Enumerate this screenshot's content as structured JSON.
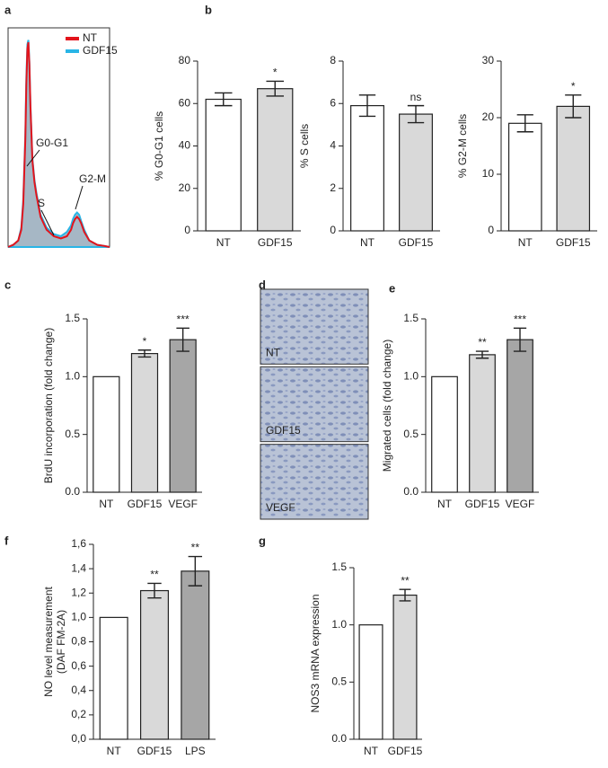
{
  "chart_data": [
    {
      "panel": "a",
      "type": "density",
      "xlim": [
        0,
        100
      ],
      "ylim": [
        0,
        100
      ],
      "x": [
        0,
        5,
        10,
        13,
        15,
        17,
        18,
        19,
        20,
        21,
        22,
        24,
        26,
        28,
        32,
        38,
        45,
        52,
        58,
        62,
        64,
        66,
        68,
        70,
        72,
        75,
        80,
        88,
        95,
        100
      ],
      "series": [
        {
          "name": "NT",
          "color": "#e3141c",
          "values": [
            0,
            1,
            3,
            8,
            20,
            50,
            75,
            92,
            95,
            85,
            65,
            40,
            30,
            24,
            14,
            8,
            5,
            4,
            5,
            8,
            11,
            13,
            14,
            13,
            11,
            7,
            3,
            1,
            0.5,
            0
          ]
        },
        {
          "name": "GDF15",
          "color": "#29b5e6",
          "fill": "#97aabb",
          "values": [
            0,
            1,
            3,
            9,
            22,
            52,
            78,
            94,
            96,
            86,
            66,
            41,
            31,
            25,
            15,
            9,
            6,
            5,
            7,
            10,
            13,
            15,
            16,
            15,
            12,
            8,
            3,
            1,
            0.5,
            0
          ]
        }
      ],
      "annotations": [
        "G0-G1",
        "S",
        "G2-M"
      ]
    },
    {
      "panel": "b",
      "type": "bar",
      "ylabel": [
        "% G0-G1 cells"
      ],
      "categories": [
        "NT",
        "GDF15"
      ],
      "values": [
        62,
        67
      ],
      "errors": [
        3,
        3.5
      ],
      "colors": [
        "#ffffff",
        "#d9d9d9"
      ],
      "significance": [
        null,
        "*"
      ],
      "ylim": [
        0,
        80
      ],
      "yticks": [
        0,
        20,
        40,
        60,
        80
      ]
    },
    {
      "panel": null,
      "type": "bar",
      "ylabel": [
        "% S cells"
      ],
      "categories": [
        "NT",
        "GDF15"
      ],
      "values": [
        5.9,
        5.5
      ],
      "errors": [
        0.5,
        0.4
      ],
      "colors": [
        "#ffffff",
        "#d9d9d9"
      ],
      "significance": [
        null,
        "ns"
      ],
      "ylim": [
        0,
        8
      ],
      "yticks": [
        0,
        2,
        4,
        6,
        8
      ]
    },
    {
      "panel": null,
      "type": "bar",
      "ylabel": [
        "% G2-M cells"
      ],
      "categories": [
        "NT",
        "GDF15"
      ],
      "values": [
        19,
        22
      ],
      "errors": [
        1.5,
        2
      ],
      "colors": [
        "#ffffff",
        "#d9d9d9"
      ],
      "significance": [
        null,
        "*"
      ],
      "ylim": [
        0,
        30
      ],
      "yticks": [
        0,
        10,
        20,
        30
      ]
    },
    {
      "panel": "c",
      "type": "bar",
      "ylabel": [
        "BrdU incorporation (fold change)"
      ],
      "categories": [
        "NT",
        "GDF15",
        "VEGF"
      ],
      "values": [
        1.0,
        1.2,
        1.32
      ],
      "errors": [
        null,
        0.03,
        0.1
      ],
      "colors": [
        "#ffffff",
        "#d9d9d9",
        "#a6a6a6"
      ],
      "significance": [
        null,
        "*",
        "***"
      ],
      "ylim": [
        0,
        1.5
      ],
      "yticks": [
        {
          "value": 0,
          "label": "0.0"
        },
        0.5,
        {
          "value": 1,
          "label": "1.0"
        },
        1.5
      ]
    },
    {
      "panel": "d",
      "type": "image",
      "images": [
        "NT",
        "GDF15",
        "VEGF"
      ]
    },
    {
      "panel": "e",
      "type": "bar",
      "ylabel": [
        "Migrated cells (fold change)"
      ],
      "categories": [
        "NT",
        "GDF15",
        "VEGF"
      ],
      "values": [
        1.0,
        1.19,
        1.32
      ],
      "errors": [
        null,
        0.03,
        0.1
      ],
      "colors": [
        "#ffffff",
        "#d9d9d9",
        "#a6a6a6"
      ],
      "significance": [
        null,
        "**",
        "***"
      ],
      "ylim": [
        0,
        1.5
      ],
      "yticks": [
        {
          "value": 0,
          "label": "0.0"
        },
        0.5,
        {
          "value": 1,
          "label": "1.0"
        },
        1.5
      ]
    },
    {
      "panel": "f",
      "type": "bar",
      "ylabel": [
        "NO level measurement",
        "(DAF FM-2A)"
      ],
      "categories": [
        "NT",
        "GDF15",
        "LPS"
      ],
      "values": [
        1.0,
        1.22,
        1.38
      ],
      "errors": [
        null,
        0.06,
        0.12
      ],
      "colors": [
        "#ffffff",
        "#d9d9d9",
        "#a6a6a6"
      ],
      "significance": [
        null,
        "**",
        "**"
      ],
      "ylim": [
        0,
        1.6
      ],
      "yticks": [
        {
          "value": 0,
          "label": "0,0"
        },
        {
          "value": 0.2,
          "label": "0,2"
        },
        {
          "value": 0.4,
          "label": "0,4"
        },
        {
          "value": 0.6,
          "label": "0,6"
        },
        {
          "value": 0.8,
          "label": "0,8"
        },
        {
          "value": 1,
          "label": "1,0"
        },
        {
          "value": 1.2,
          "label": "1,2"
        },
        {
          "value": 1.4,
          "label": "1,4"
        },
        {
          "value": 1.6,
          "label": "1,6"
        }
      ]
    },
    {
      "panel": "g",
      "type": "bar",
      "ylabel": [
        "NOS3 mRNA expression"
      ],
      "categories": [
        "NT",
        "GDF15"
      ],
      "values": [
        1.0,
        1.26
      ],
      "errors": [
        null,
        0.05
      ],
      "colors": [
        "#ffffff",
        "#d9d9d9"
      ],
      "significance": [
        null,
        "**"
      ],
      "ylim": [
        0,
        1.5
      ],
      "yticks": [
        {
          "value": 0,
          "label": "0.0"
        },
        0.5,
        {
          "value": 1,
          "label": "1.0"
        },
        1.5
      ]
    }
  ]
}
